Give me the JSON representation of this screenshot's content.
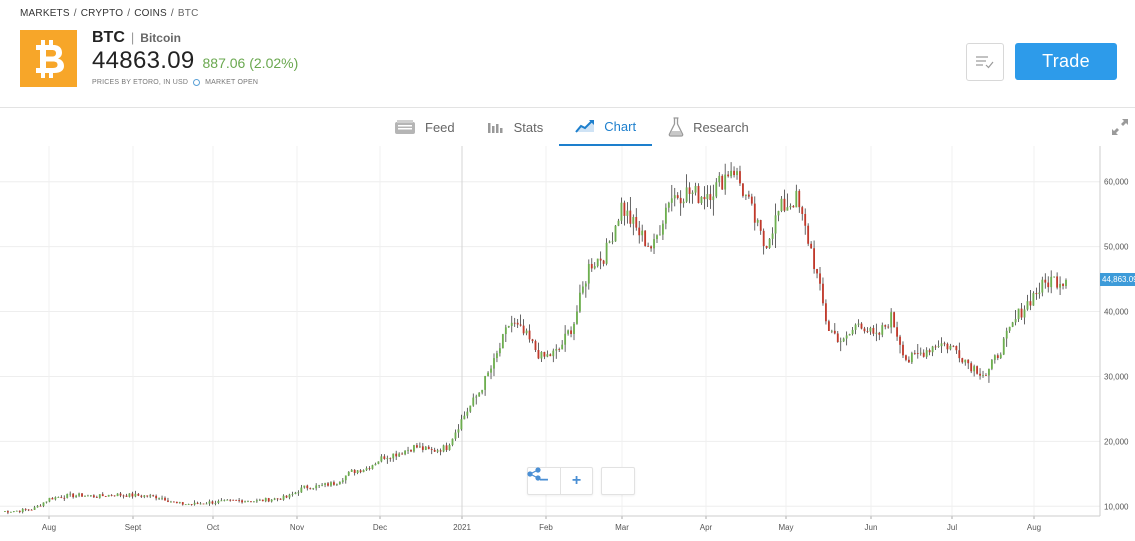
{
  "breadcrumb": {
    "items": [
      "MARKETS",
      "CRYPTO",
      "COINS"
    ],
    "current": "BTC",
    "separator": "/"
  },
  "instrument": {
    "symbol": "BTC",
    "pipe": "|",
    "name": "Bitcoin",
    "price": "44863.09",
    "change": "887.06 (2.02%)",
    "price_source": "PRICES BY ETORO, IN USD",
    "market_status": "MARKET OPEN",
    "logo_icon": "bitcoin-icon",
    "logo_color": "#f7a629",
    "change_color": "#6aa84f"
  },
  "actions": {
    "trade_label": "Trade",
    "trade_color": "#2d9bea",
    "watchlist_icon": "watchlist-check-icon"
  },
  "tabs": [
    {
      "label": "Feed",
      "icon": "feed-icon",
      "active": false
    },
    {
      "label": "Stats",
      "icon": "stats-bar-icon",
      "active": false
    },
    {
      "label": "Chart",
      "icon": "chart-line-icon",
      "active": true
    },
    {
      "label": "Research",
      "icon": "flask-icon",
      "active": false
    }
  ],
  "chart_controls": {
    "zoom_out": "−",
    "zoom_in": "+",
    "share_icon": "share-icon",
    "expand_icon": "expand-icon"
  },
  "chart_data": {
    "type": "candlestick",
    "x_labels": [
      "Aug",
      "Sept",
      "Oct",
      "Nov",
      "Dec",
      "2021",
      "Feb",
      "Mar",
      "Apr",
      "May",
      "Jun",
      "Jul",
      "Aug"
    ],
    "y_ticks": [
      "10,000",
      "20,000",
      "30,000",
      "40,000",
      "50,000",
      "60,000"
    ],
    "y_values": [
      10000,
      20000,
      30000,
      40000,
      50000,
      60000
    ],
    "ylim": [
      8500,
      65500
    ],
    "last_price_label": "44,863.09",
    "up_color": "#6dae4f",
    "down_color": "#c0392b",
    "grid": true,
    "weekly_close_path": [
      9200,
      9300,
      9600,
      11200,
      11600,
      11700,
      11500,
      11800,
      11700,
      11600,
      11400,
      10400,
      10300,
      10600,
      10700,
      10900,
      10800,
      11100,
      11400,
      12900,
      13100,
      13600,
      15300,
      15900,
      17600,
      18200,
      19200,
      18500,
      19100,
      23600,
      27400,
      32200,
      38500,
      36200,
      32800,
      33800,
      38200,
      47300,
      48800,
      56300,
      52400,
      49600,
      57600,
      58400,
      57900,
      59200,
      62500,
      56700,
      50100,
      55800,
      57400,
      49100,
      37500,
      35200,
      38600,
      35700,
      39100,
      32300,
      33800,
      35200,
      34300,
      31700,
      30200,
      34800,
      39500,
      42700,
      44900,
      44863
    ]
  }
}
